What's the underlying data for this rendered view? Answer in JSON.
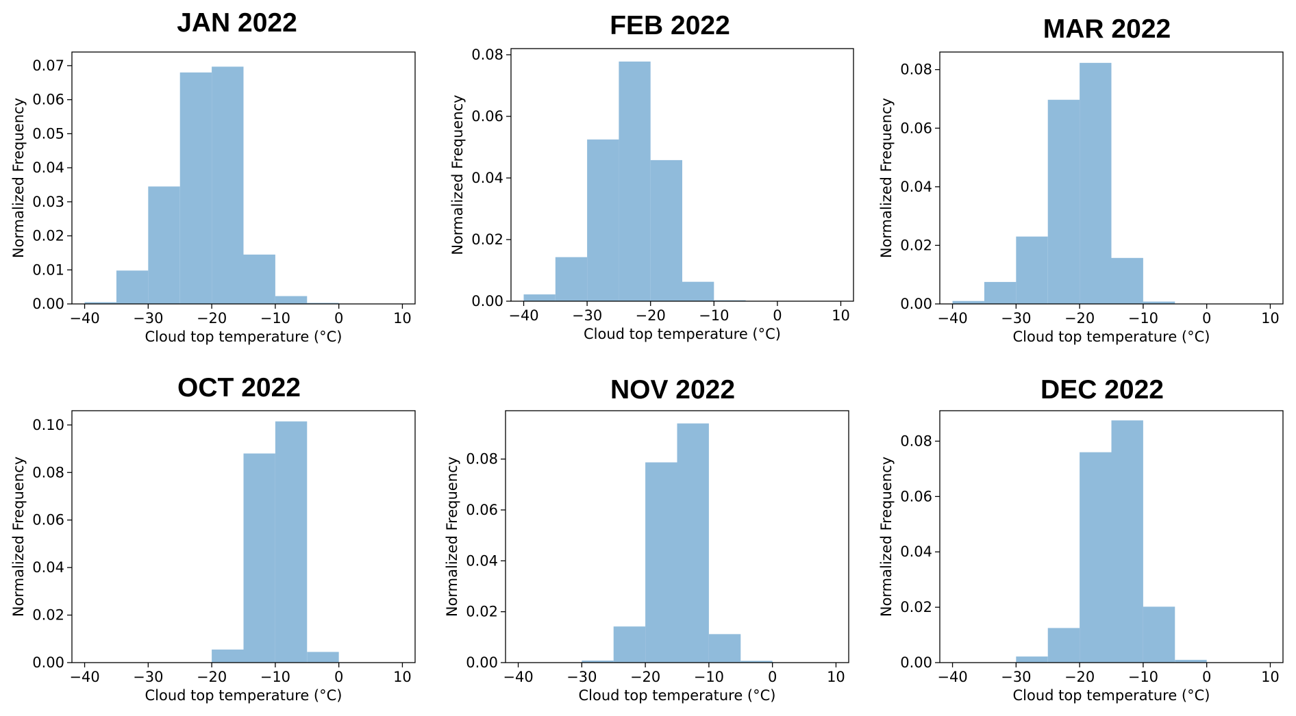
{
  "chart_data": [
    {
      "type": "bar",
      "title": "JAN 2022",
      "xlabel": "Cloud top temperature (°C)",
      "ylabel": "Normalized Frequency",
      "xlim": [
        -42,
        12
      ],
      "ylim": [
        0,
        0.074
      ],
      "xticks": [
        -40,
        -30,
        -20,
        -10,
        0,
        10
      ],
      "xtick_labels": [
        "−40",
        "−30",
        "−20",
        "−10",
        "0",
        "10"
      ],
      "yticks": [
        0,
        0.01,
        0.02,
        0.03,
        0.04,
        0.05,
        0.06,
        0.07
      ],
      "ytick_labels": [
        "0.00",
        "0.01",
        "0.02",
        "0.03",
        "0.04",
        "0.05",
        "0.06",
        "0.07"
      ],
      "bin_edges": [
        -40,
        -35,
        -30,
        -25,
        -20,
        -15,
        -10,
        -5,
        0
      ],
      "values": [
        0.0005,
        0.0098,
        0.0345,
        0.068,
        0.0697,
        0.0145,
        0.0023,
        0.0003
      ],
      "grid": false,
      "legend": false
    },
    {
      "type": "bar",
      "title": "FEB 2022",
      "xlabel": "Cloud top temperature (°C)",
      "ylabel": "Normalized Frequency",
      "xlim": [
        -42,
        12
      ],
      "ylim": [
        0,
        0.082
      ],
      "xticks": [
        -40,
        -30,
        -20,
        -10,
        0,
        10
      ],
      "xtick_labels": [
        "−40",
        "−30",
        "−20",
        "−10",
        "0",
        "10"
      ],
      "yticks": [
        0,
        0.02,
        0.04,
        0.06,
        0.08
      ],
      "ytick_labels": [
        "0.00",
        "0.02",
        "0.04",
        "0.06",
        "0.08"
      ],
      "bin_edges": [
        -40,
        -35,
        -30,
        -25,
        -20,
        -15,
        -10,
        -5,
        0
      ],
      "values": [
        0.0022,
        0.0143,
        0.0525,
        0.0778,
        0.0458,
        0.0063,
        0.0003,
        0.0001
      ],
      "grid": false,
      "legend": false
    },
    {
      "type": "bar",
      "title": "MAR 2022",
      "xlabel": "Cloud top temperature (°C)",
      "ylabel": "Normalized Frequency",
      "xlim": [
        -42,
        12
      ],
      "ylim": [
        0,
        0.086
      ],
      "xticks": [
        -40,
        -30,
        -20,
        -10,
        0,
        10
      ],
      "xtick_labels": [
        "−40",
        "−30",
        "−20",
        "−10",
        "0",
        "10"
      ],
      "yticks": [
        0,
        0.02,
        0.04,
        0.06,
        0.08
      ],
      "ytick_labels": [
        "0.00",
        "0.02",
        "0.04",
        "0.06",
        "0.08"
      ],
      "bin_edges": [
        -40,
        -35,
        -30,
        -25,
        -20,
        -15,
        -10,
        -5,
        0
      ],
      "values": [
        0.001,
        0.0075,
        0.023,
        0.0697,
        0.0823,
        0.0157,
        0.0008,
        0.0001
      ],
      "grid": false,
      "legend": false
    },
    {
      "type": "bar",
      "title": "OCT 2022",
      "xlabel": "Cloud top temperature (°C)",
      "ylabel": "Normalized Frequency",
      "xlim": [
        -42,
        12
      ],
      "ylim": [
        0,
        0.106
      ],
      "xticks": [
        -40,
        -30,
        -20,
        -10,
        0,
        10
      ],
      "xtick_labels": [
        "−40",
        "−30",
        "−20",
        "−10",
        "0",
        "10"
      ],
      "yticks": [
        0,
        0.02,
        0.04,
        0.06,
        0.08,
        0.1
      ],
      "ytick_labels": [
        "0.00",
        "0.02",
        "0.04",
        "0.06",
        "0.08",
        "0.10"
      ],
      "bin_edges": [
        -20,
        -15,
        -10,
        -5,
        0
      ],
      "values": [
        0.0055,
        0.088,
        0.1015,
        0.0045
      ],
      "grid": false,
      "legend": false
    },
    {
      "type": "bar",
      "title": "NOV 2022",
      "xlabel": "Cloud top temperature (°C)",
      "ylabel": "Normalized Frequency",
      "xlim": [
        -42,
        12
      ],
      "ylim": [
        0,
        0.099
      ],
      "xticks": [
        -40,
        -30,
        -20,
        -10,
        0,
        10
      ],
      "xtick_labels": [
        "−40",
        "−30",
        "−20",
        "−10",
        "0",
        "10"
      ],
      "yticks": [
        0,
        0.02,
        0.04,
        0.06,
        0.08
      ],
      "ytick_labels": [
        "0.00",
        "0.02",
        "0.04",
        "0.06",
        "0.08"
      ],
      "bin_edges": [
        -30,
        -25,
        -20,
        -15,
        -10,
        -5,
        0
      ],
      "values": [
        0.0008,
        0.0142,
        0.0787,
        0.094,
        0.0112,
        0.0007
      ],
      "grid": false,
      "legend": false
    },
    {
      "type": "bar",
      "title": "DEC 2022",
      "xlabel": "Cloud top temperature (°C)",
      "ylabel": "Normalized Frequency",
      "xlim": [
        -42,
        12
      ],
      "ylim": [
        0,
        0.091
      ],
      "xticks": [
        -40,
        -30,
        -20,
        -10,
        0,
        10
      ],
      "xtick_labels": [
        "−40",
        "−30",
        "−20",
        "−10",
        "0",
        "10"
      ],
      "yticks": [
        0,
        0.02,
        0.04,
        0.06,
        0.08
      ],
      "ytick_labels": [
        "0.00",
        "0.02",
        "0.04",
        "0.06",
        "0.08"
      ],
      "bin_edges": [
        -30,
        -25,
        -20,
        -15,
        -10,
        -5,
        0
      ],
      "values": [
        0.0022,
        0.0125,
        0.076,
        0.0875,
        0.0202,
        0.001
      ],
      "grid": false,
      "legend": false
    }
  ],
  "colors": {
    "bar_fill": "#90bbdb",
    "axes": "#000000",
    "text": "#000000",
    "background": "#ffffff"
  }
}
